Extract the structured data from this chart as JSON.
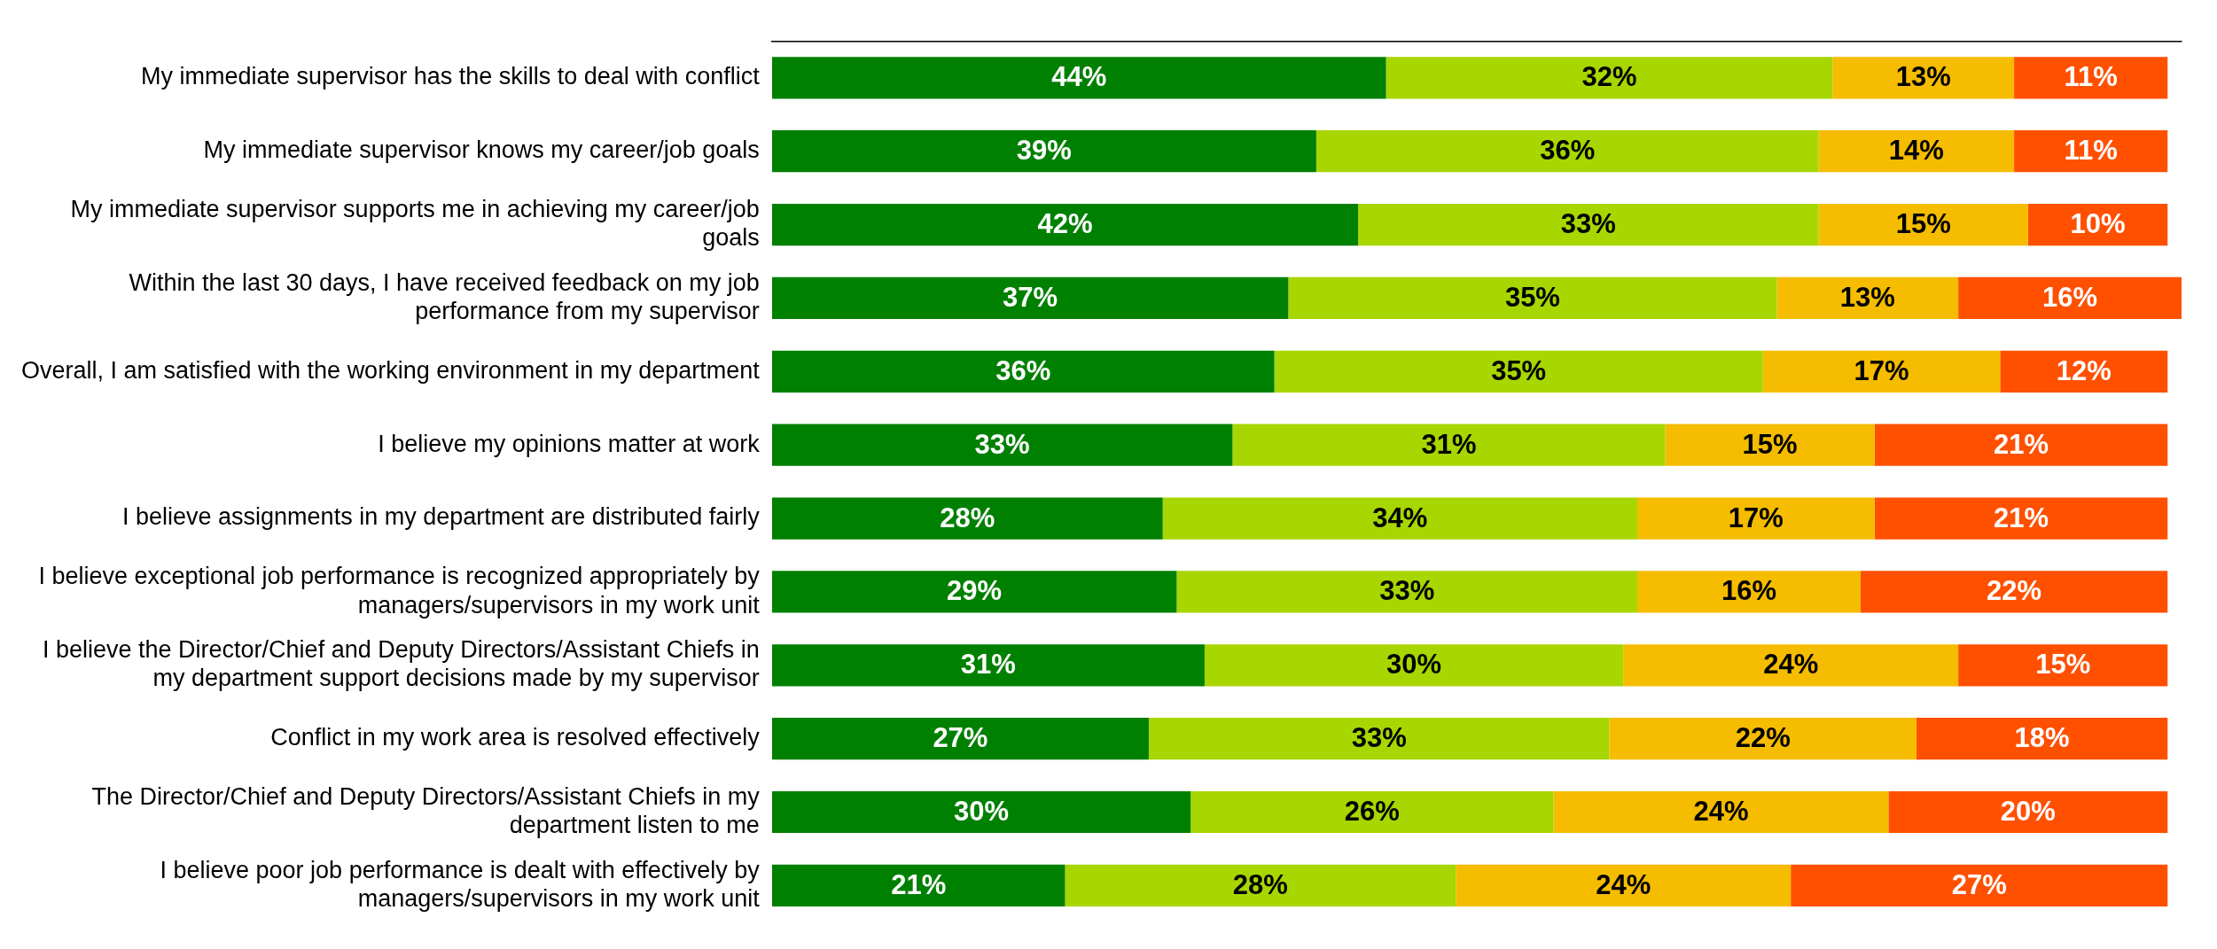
{
  "chart_data": {
    "type": "bar",
    "orientation": "horizontal",
    "stacked": true,
    "tick_labels": "y",
    "legend": false,
    "categories": [
      "My immediate supervisor has the skills to deal with conflict",
      "My immediate supervisor knows my career/job goals",
      "My immediate supervisor supports me in achieving my career/job goals",
      "Within the last 30 days, I have received feedback on my job performance from my supervisor",
      "Overall, I am satisfied with the working environment in my department",
      "I believe my opinions matter at work",
      "I believe assignments in my department are distributed fairly",
      "I believe exceptional job performance is recognized appropriately by managers/supervisors in my work unit",
      "I believe the Director/Chief and Deputy Directors/Assistant Chiefs in my department support decisions made by my supervisor",
      "Conflict in my work area is resolved effectively",
      "The Director/Chief and Deputy Directors/Assistant Chiefs in my department listen to me",
      "I believe poor job performance is dealt with effectively by managers/supervisors in my work unit"
    ],
    "series": [
      {
        "color": "#008000",
        "values": [
          44,
          39,
          42,
          37,
          36,
          33,
          28,
          29,
          31,
          27,
          30,
          21
        ],
        "value_labels": [
          "44%",
          "39%",
          "42%",
          "37%",
          "36%",
          "33%",
          "28%",
          "29%",
          "31%",
          "27%",
          "30%",
          "21%"
        ]
      },
      {
        "color": "#a8d600",
        "values": [
          32,
          36,
          33,
          35,
          35,
          31,
          34,
          33,
          30,
          33,
          26,
          28
        ],
        "value_labels": [
          "32%",
          "36%",
          "33%",
          "35%",
          "35%",
          "31%",
          "34%",
          "33%",
          "30%",
          "33%",
          "26%",
          "28%"
        ]
      },
      {
        "color": "#f5bc00",
        "values": [
          13,
          14,
          15,
          13,
          17,
          15,
          17,
          16,
          24,
          22,
          24,
          24
        ],
        "value_labels": [
          "13%",
          "14%",
          "15%",
          "13%",
          "17%",
          "15%",
          "17%",
          "16%",
          "24%",
          "22%",
          "24%",
          "24%"
        ]
      },
      {
        "color": "#ff5000",
        "values": [
          11,
          11,
          10,
          16,
          12,
          21,
          21,
          22,
          15,
          18,
          20,
          27
        ],
        "value_labels": [
          "11%",
          "11%",
          "10%",
          "16%",
          "12%",
          "21%",
          "21%",
          "22%",
          "15%",
          "18%",
          "20%",
          "27%"
        ]
      }
    ]
  }
}
